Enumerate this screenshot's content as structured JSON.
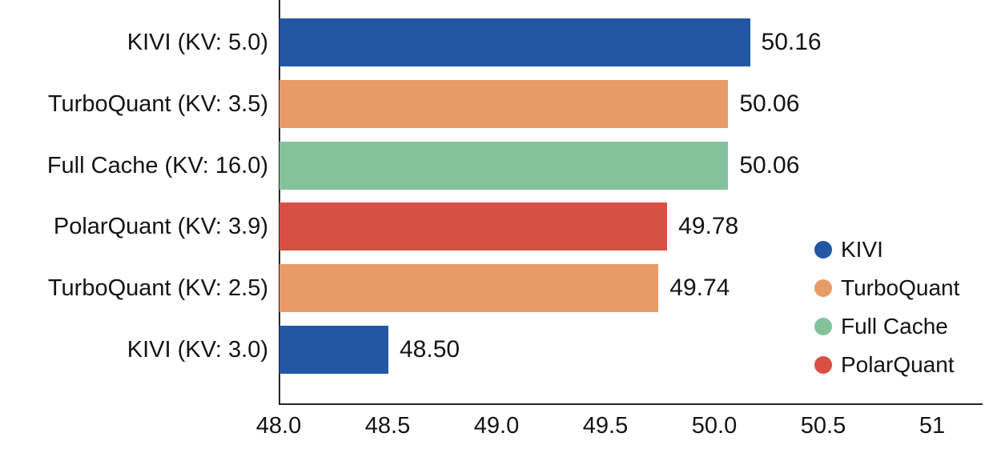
{
  "chart_data": {
    "type": "bar",
    "orientation": "horizontal",
    "categories": [
      "KIVI (KV: 5.0)",
      "TurboQuant (KV: 3.5)",
      "Full Cache (KV: 16.0)",
      "PolarQuant (KV: 3.9)",
      "TurboQuant (KV: 2.5)",
      "KIVI (KV: 3.0)"
    ],
    "values": [
      50.16,
      50.06,
      50.06,
      49.78,
      49.74,
      48.5
    ],
    "value_labels": [
      "50.16",
      "50.06",
      "50.06",
      "49.78",
      "49.74",
      "48.50"
    ],
    "bar_series": [
      "KIVI",
      "TurboQuant",
      "Full Cache",
      "PolarQuant",
      "TurboQuant",
      "KIVI"
    ],
    "bar_colors": [
      "#2257A3",
      "#E89B66",
      "#84C29B",
      "#D85043",
      "#E89B66",
      "#2257A3"
    ],
    "xlim": [
      48.0,
      51.23
    ],
    "x_ticks": [
      48.0,
      48.5,
      49.0,
      49.5,
      50.0,
      50.5,
      51.0
    ],
    "x_tick_labels": [
      "48.0",
      "48.5",
      "49.0",
      "49.5",
      "50.0",
      "50.5",
      "51"
    ],
    "grid": false,
    "title": "",
    "xlabel": "",
    "ylabel": "",
    "legend": {
      "position": "right-inside",
      "entries": [
        {
          "label": "KIVI",
          "color": "#2257A3"
        },
        {
          "label": "TurboQuant",
          "color": "#E89B66"
        },
        {
          "label": "Full Cache",
          "color": "#84C29B"
        },
        {
          "label": "PolarQuant",
          "color": "#D85043"
        }
      ]
    },
    "colors": {
      "axis": "#262626",
      "text": "#141414",
      "background": "#ffffff"
    }
  }
}
